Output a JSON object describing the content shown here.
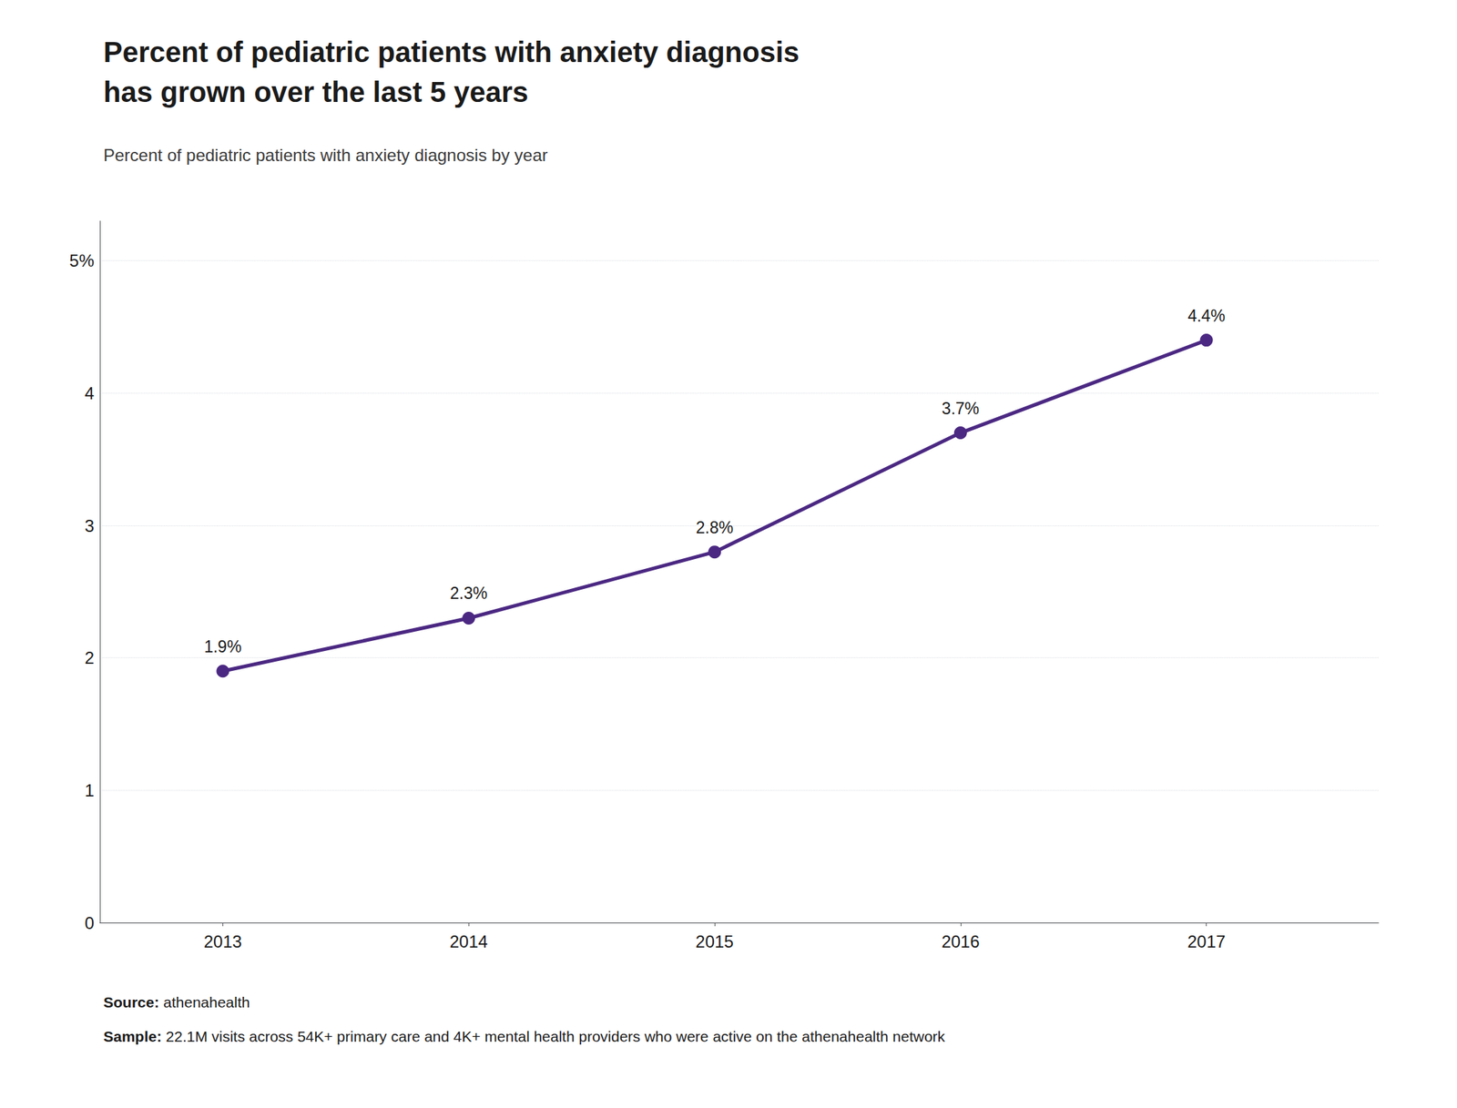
{
  "chart_data": {
    "type": "line",
    "title": "Percent of pediatric patients with anxiety diagnosis\nhas grown over the last 5 years",
    "subtitle": "Percent of pediatric patients with anxiety diagnosis by year",
    "annotations": [
      "Source: athenahealth",
      "Sample: 22.1M visits across 54K+ primary care and 4K+ mental health providers who were active on the athenahealth network"
    ],
    "x": [
      2013,
      2014,
      2015,
      2016,
      2017
    ],
    "values": [
      1.9,
      2.3,
      2.8,
      3.7,
      4.4
    ],
    "value_labels": [
      "1.9%",
      "2.3%",
      "2.8%",
      "3.7%",
      "4.4%"
    ],
    "data_labels": true,
    "color": "#4b2882",
    "xlim": [
      2012.5,
      2017.7
    ],
    "xticks": [
      2013,
      2014,
      2015,
      2016,
      2017
    ],
    "ylim": [
      0,
      5.3
    ],
    "yticks": [
      0,
      1,
      2,
      3,
      4,
      {
        "value": 5,
        "label": "5%"
      }
    ],
    "grid": true
  }
}
